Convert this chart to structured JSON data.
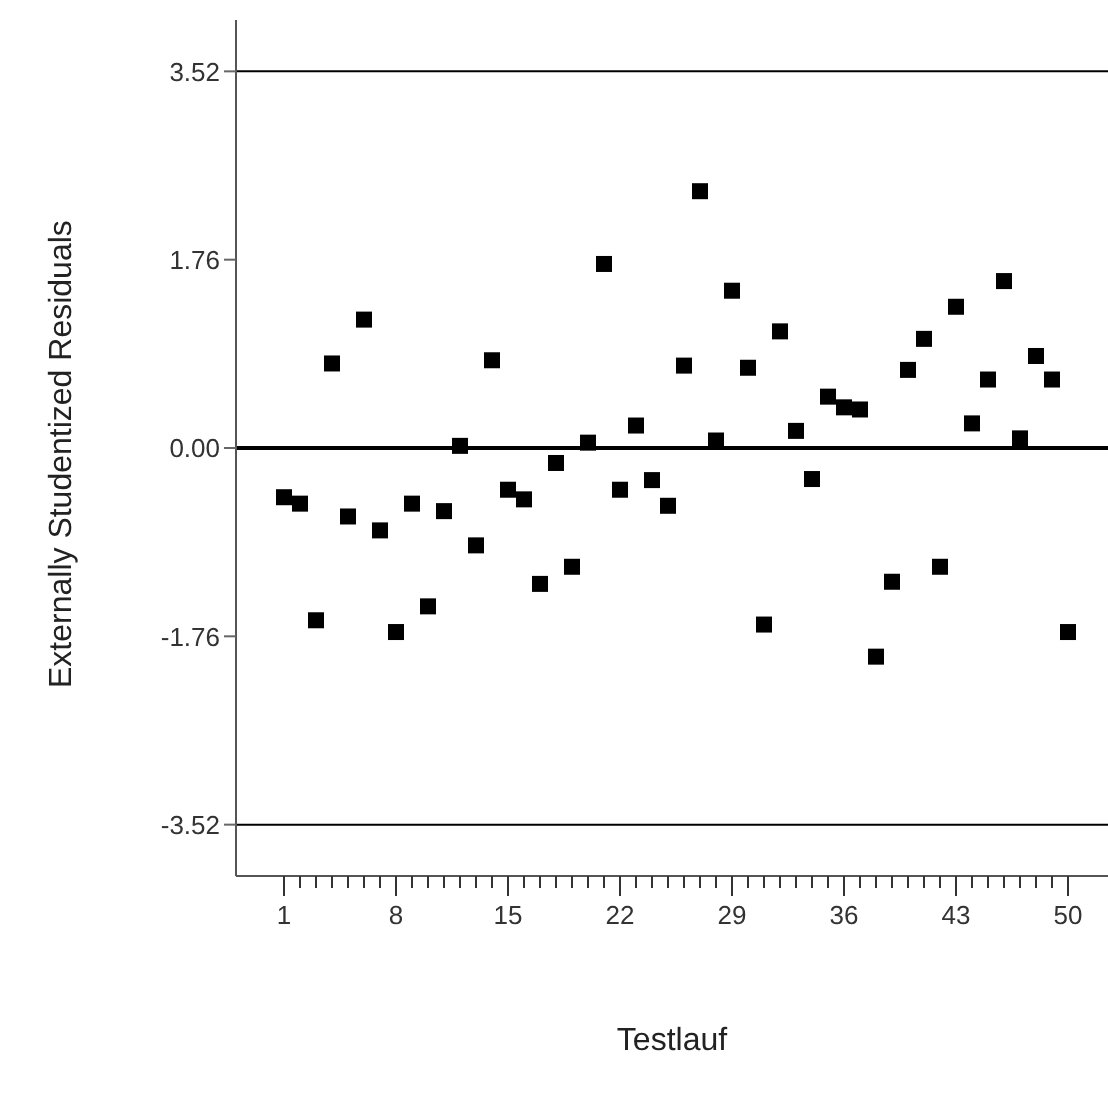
{
  "chart_data": {
    "type": "scatter",
    "xlabel": "Testlauf",
    "ylabel": "Externally Studentized Residuals",
    "x": [
      1,
      2,
      3,
      4,
      5,
      6,
      7,
      8,
      9,
      10,
      11,
      12,
      13,
      14,
      15,
      16,
      17,
      18,
      19,
      20,
      21,
      22,
      23,
      24,
      25,
      26,
      27,
      28,
      29,
      30,
      31,
      32,
      33,
      34,
      35,
      36,
      37,
      38,
      39,
      40,
      41,
      42,
      43,
      44,
      45,
      46,
      47,
      48,
      49,
      50
    ],
    "series": [
      {
        "color": "#000000",
        "values": [
          -0.46,
          -0.52,
          -1.61,
          0.79,
          -0.64,
          1.2,
          -0.77,
          -1.72,
          -0.52,
          -1.48,
          -0.59,
          0.02,
          -0.91,
          0.82,
          -0.39,
          -0.48,
          -1.27,
          -0.14,
          -1.11,
          0.05,
          1.72,
          -0.39,
          0.21,
          -0.3,
          -0.54,
          0.77,
          2.4,
          0.07,
          1.47,
          0.75,
          -1.65,
          1.09,
          0.16,
          -0.29,
          0.48,
          0.38,
          0.36,
          -1.95,
          -1.25,
          0.73,
          1.02,
          -1.11,
          1.32,
          0.23,
          0.64,
          1.56,
          0.09,
          0.86,
          0.64,
          -1.72
        ]
      }
    ],
    "xlim": [
      -2,
      52.5
    ],
    "ylim": [
      -4,
      4
    ],
    "xticks": [
      1,
      {
        "value": 2,
        "label": null
      },
      {
        "value": 3,
        "label": null
      },
      {
        "value": 4,
        "label": null
      },
      {
        "value": 5,
        "label": null
      },
      {
        "value": 6,
        "label": null
      },
      {
        "value": 7,
        "label": null
      },
      8,
      {
        "value": 9,
        "label": null
      },
      {
        "value": 10,
        "label": null
      },
      {
        "value": 11,
        "label": null
      },
      {
        "value": 12,
        "label": null
      },
      {
        "value": 13,
        "label": null
      },
      {
        "value": 14,
        "label": null
      },
      15,
      {
        "value": 16,
        "label": null
      },
      {
        "value": 17,
        "label": null
      },
      {
        "value": 18,
        "label": null
      },
      {
        "value": 19,
        "label": null
      },
      {
        "value": 20,
        "label": null
      },
      {
        "value": 21,
        "label": null
      },
      22,
      {
        "value": 23,
        "label": null
      },
      {
        "value": 24,
        "label": null
      },
      {
        "value": 25,
        "label": null
      },
      {
        "value": 26,
        "label": null
      },
      {
        "value": 27,
        "label": null
      },
      {
        "value": 28,
        "label": null
      },
      29,
      {
        "value": 30,
        "label": null
      },
      {
        "value": 31,
        "label": null
      },
      {
        "value": 32,
        "label": null
      },
      {
        "value": 33,
        "label": null
      },
      {
        "value": 34,
        "label": null
      },
      {
        "value": 35,
        "label": null
      },
      36,
      {
        "value": 37,
        "label": null
      },
      {
        "value": 38,
        "label": null
      },
      {
        "value": 39,
        "label": null
      },
      {
        "value": 40,
        "label": null
      },
      {
        "value": 41,
        "label": null
      },
      {
        "value": 42,
        "label": null
      },
      43,
      {
        "value": 44,
        "label": null
      },
      {
        "value": 45,
        "label": null
      },
      {
        "value": 46,
        "label": null
      },
      {
        "value": 47,
        "label": null
      },
      {
        "value": 48,
        "label": null
      },
      {
        "value": 49,
        "label": null
      },
      50
    ],
    "yticks": [
      -3.52,
      -1.76,
      {
        "value": 0,
        "label": "0.00"
      },
      1.76,
      3.52
    ],
    "ref_lines": [
      {
        "axis": "y",
        "value": 3.52,
        "color": "#000000"
      },
      {
        "axis": "y",
        "value": 0,
        "color": "#000000"
      },
      {
        "axis": "y",
        "value": -3.52,
        "color": "#000000"
      }
    ],
    "grid": false,
    "legend": false,
    "marker": "square"
  }
}
